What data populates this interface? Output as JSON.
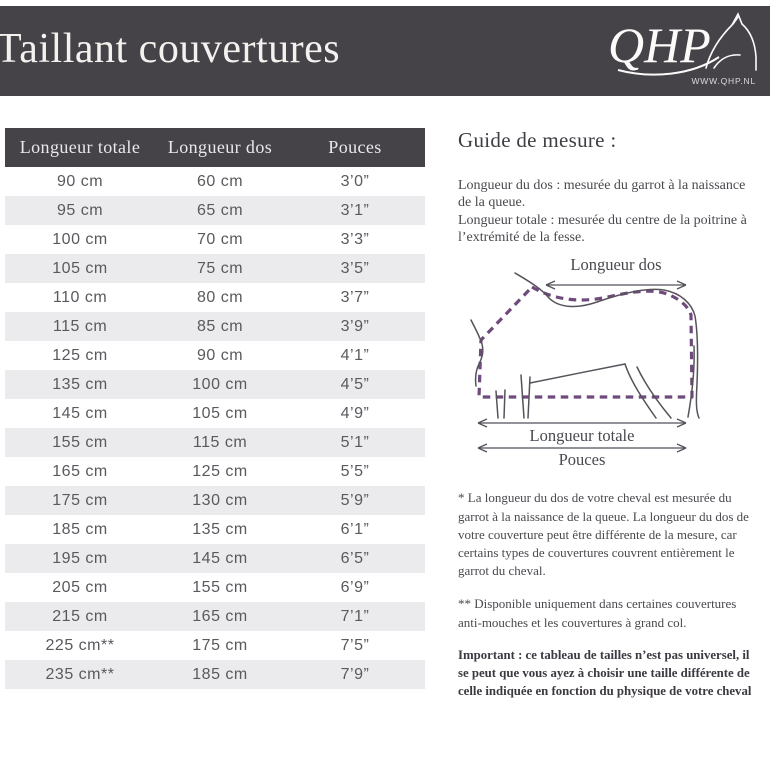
{
  "header": {
    "title": "Taillant couvertures",
    "logo_text": "QHP",
    "logo_url": "WWW.QHP.NL"
  },
  "table": {
    "columns": [
      "Longueur totale",
      "Longueur dos",
      "Pouces"
    ],
    "rows": [
      [
        "90 cm",
        "60 cm",
        "3’0”"
      ],
      [
        "95 cm",
        "65 cm",
        "3’1”"
      ],
      [
        "100 cm",
        "70 cm",
        "3’3”"
      ],
      [
        "105 cm",
        "75 cm",
        "3’5”"
      ],
      [
        "110 cm",
        "80 cm",
        "3’7”"
      ],
      [
        "115 cm",
        "85 cm",
        "3’9”"
      ],
      [
        "125 cm",
        "90 cm",
        "4’1”"
      ],
      [
        "135 cm",
        "100 cm",
        "4’5”"
      ],
      [
        "145 cm",
        "105 cm",
        "4’9”"
      ],
      [
        "155 cm",
        "115 cm",
        "5’1”"
      ],
      [
        "165 cm",
        "125 cm",
        "5’5”"
      ],
      [
        "175 cm",
        "130 cm",
        "5’9”"
      ],
      [
        "185 cm",
        "135 cm",
        "6’1”"
      ],
      [
        "195 cm",
        "145 cm",
        "6’5”"
      ],
      [
        "205 cm",
        "155 cm",
        "6’9”"
      ],
      [
        "215 cm",
        "165 cm",
        "7’1”"
      ],
      [
        "225 cm**",
        "175 cm",
        "7’5”"
      ],
      [
        "235 cm**",
        "185 cm",
        "7’9”"
      ]
    ]
  },
  "guide": {
    "heading": "Guide de mesure :",
    "intro_dos": "Longueur du dos : mesurée du garrot à la naissance de la queue.",
    "intro_totale": "Longueur totale : mesurée du centre de la poitrine à l’extrémité de la fesse.",
    "diagram_labels": {
      "dos": "Longueur dos",
      "totale": "Longueur totale",
      "pouces": "Pouces"
    },
    "note_single_star": "* La longueur du dos de votre cheval est mesurée du garrot à la naissance de la queue. La longueur du dos de votre couverture peut être différente de la mesure, car certains types de couvertures couvrent entièrement le garrot du cheval.",
    "note_double_star": "** Disponible uniquement dans certaines couvertures anti-mouches et les couvertures à grand col.",
    "important": "Important : ce tableau de tailles n’est pas universel, il se peut que vous ayez à choisir une taille différente de celle indiquée en fonction du physique de votre cheval"
  },
  "colors": {
    "banner_bg": "#454248",
    "row_alt": "#ebebed",
    "blanket_dash": "#6e4a7d"
  }
}
